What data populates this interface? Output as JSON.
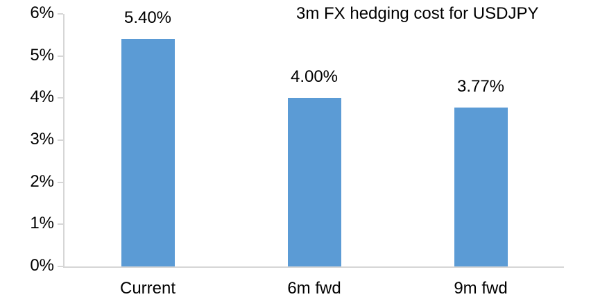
{
  "chart_data": {
    "type": "bar",
    "title": "3m FX hedging cost for USDJPY",
    "categories": [
      "Current",
      "6m fwd",
      "9m fwd"
    ],
    "values": [
      5.4,
      4.0,
      3.77
    ],
    "data_labels": [
      "5.40%",
      "4.00%",
      "3.77%"
    ],
    "xlabel": "",
    "ylabel": "",
    "ylim": [
      0,
      6
    ],
    "ytick_interval": 1,
    "ytick_labels": [
      "0%",
      "1%",
      "2%",
      "3%",
      "4%",
      "5%",
      "6%"
    ],
    "grid": false,
    "legend": "none",
    "bar_color": "#5B9BD5",
    "axis_color": "#D6D6D6",
    "text_color": "#000000"
  }
}
